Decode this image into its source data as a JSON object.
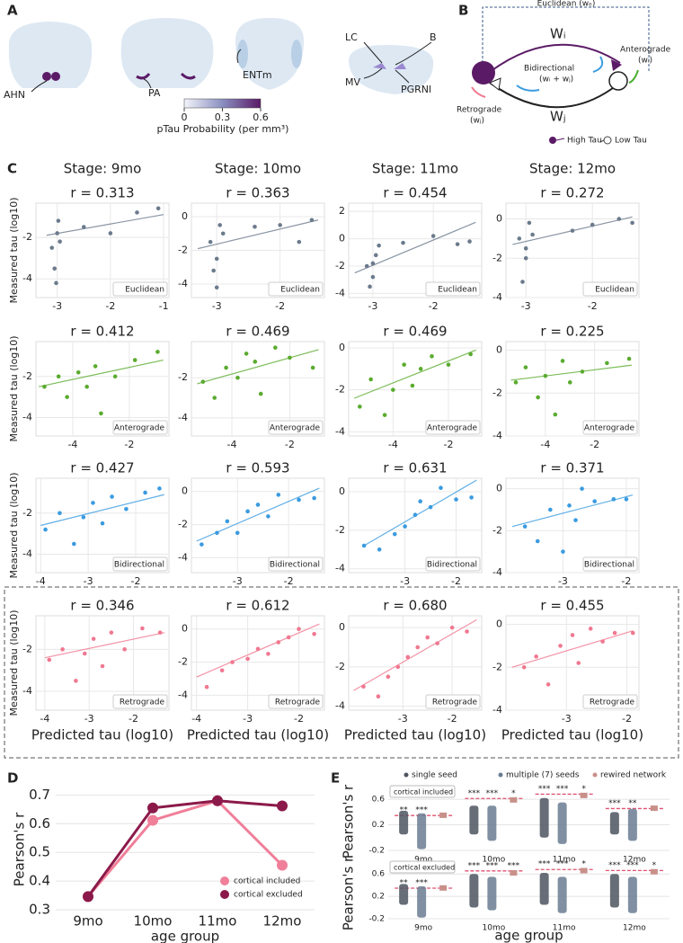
{
  "letters": [
    "A",
    "B",
    "C",
    "D",
    "E"
  ],
  "panel_a": {
    "labels": [
      "AHN",
      "PA",
      "ENTm",
      "LC",
      "B",
      "MV",
      "PGRNl"
    ],
    "colorbar": {
      "ticks": [
        0,
        0.3,
        0.6
      ],
      "label": "pTau Probability (per mm³)"
    }
  },
  "panel_b": {
    "euclidean": "Euclidean (wₑ)",
    "wi": "Wᵢ",
    "wj": "Wⱼ",
    "anterograde": "Anterograde",
    "antero_w": "(wᵢ)",
    "bidirectional": "Bidirectional",
    "bidir_w": "(wᵢ + wⱼ)",
    "retrograde": "Retrograde",
    "retro_w": "(wⱼ)",
    "high": "High Tau",
    "low": "Low Tau"
  },
  "chart_data": [
    {
      "type": "scatter",
      "stage": "Stage: 9mo",
      "title": "r = 0.313",
      "label": "Euclidean",
      "ylabel": "Measured tau (log10)",
      "color": "#6b7b8c",
      "x": [
        -3.1,
        -3.05,
        -3.0,
        -2.95,
        -3.02,
        -2.98,
        -2.5,
        -2.0,
        -1.5,
        -1.1
      ],
      "values": [
        -2.5,
        -3.5,
        -1.8,
        -2.2,
        -4.2,
        -1.2,
        -1.5,
        -1.8,
        -0.8,
        -0.6
      ],
      "fit_x": [
        -3.2,
        -1.0
      ],
      "fit_values": [
        -1.9,
        -0.9
      ],
      "xlim": [
        -3.4,
        -0.9
      ],
      "ylim": [
        -4.9,
        -0.35
      ],
      "xticks": [
        -3,
        -2,
        -1
      ],
      "yticks": [
        -4,
        -2
      ]
    },
    {
      "type": "scatter",
      "stage": "Stage: 10mo",
      "title": "r = 0.363",
      "label": "Euclidean",
      "color": "#6b7b8c",
      "x": [
        -3.1,
        -3.0,
        -2.95,
        -3.05,
        -2.9,
        -3.0,
        -2.4,
        -2.0,
        -1.7,
        -1.5
      ],
      "values": [
        -1.5,
        -2.5,
        -0.5,
        -3.2,
        -1.0,
        -4.2,
        -0.6,
        -0.5,
        -1.5,
        -0.2
      ],
      "fit_x": [
        -3.3,
        -1.4
      ],
      "fit_values": [
        -1.9,
        -0.2
      ],
      "xlim": [
        -3.4,
        -1.3
      ],
      "ylim": [
        -4.8,
        0.8
      ],
      "xticks": [
        -3,
        -2
      ],
      "yticks": [
        -4,
        -2,
        0
      ]
    },
    {
      "type": "scatter",
      "stage": "Stage: 11mo",
      "title": "r = 0.454",
      "label": "Euclidean",
      "color": "#6b7b8c",
      "x": [
        -3.1,
        -3.0,
        -2.95,
        -3.05,
        -2.9,
        -3.0,
        -2.5,
        -2.0,
        -1.6,
        -1.4
      ],
      "values": [
        -2.0,
        -2.8,
        -1.2,
        -3.5,
        -0.5,
        -1.8,
        -0.3,
        0.2,
        -0.4,
        -0.2
      ],
      "fit_x": [
        -3.3,
        -1.3
      ],
      "fit_values": [
        -2.5,
        1.2
      ],
      "xlim": [
        -3.4,
        -1.2
      ],
      "ylim": [
        -4.3,
        2.6
      ],
      "xticks": [
        -3,
        -2
      ],
      "yticks": [
        -4,
        -2,
        0,
        2
      ]
    },
    {
      "type": "scatter",
      "stage": "Stage: 12mo",
      "title": "r = 0.272",
      "label": "Euclidean",
      "color": "#6b7b8c",
      "x": [
        -3.1,
        -3.0,
        -2.95,
        -3.05,
        -2.9,
        -3.0,
        -2.3,
        -2.0,
        -1.6,
        -1.4
      ],
      "values": [
        -1.0,
        -2.0,
        -0.2,
        -3.2,
        -0.8,
        -1.5,
        -0.6,
        -0.3,
        0.0,
        -0.2
      ],
      "fit_x": [
        -3.2,
        -1.4
      ],
      "fit_values": [
        -1.3,
        0.1
      ],
      "xlim": [
        -3.3,
        -1.3
      ],
      "ylim": [
        -4,
        0.8
      ],
      "xticks": [
        -3,
        -2
      ],
      "yticks": [
        -4,
        -2,
        0
      ]
    },
    {
      "type": "scatter",
      "title": "r = 0.412",
      "label": "Anterograde",
      "ylabel": "Measured tau (log10)",
      "color": "#5aab2e",
      "x": [
        -5.0,
        -4.5,
        -4.2,
        -3.8,
        -3.5,
        -3.2,
        -3.0,
        -2.5,
        -1.8,
        -1.0
      ],
      "values": [
        -2.5,
        -2.0,
        -3.0,
        -1.8,
        -2.5,
        -1.5,
        -3.8,
        -2.0,
        -1.2,
        -0.8
      ],
      "fit_x": [
        -5.2,
        -0.8
      ],
      "fit_values": [
        -2.5,
        -1.2
      ],
      "xlim": [
        -5.3,
        -0.6
      ],
      "ylim": [
        -4.9,
        -0.3
      ],
      "xticks": [
        -4,
        -2
      ],
      "yticks": [
        -4,
        -2
      ]
    },
    {
      "type": "scatter",
      "title": "r = 0.469",
      "label": "Anterograde",
      "color": "#5aab2e",
      "x": [
        -5.0,
        -4.6,
        -4.2,
        -3.8,
        -3.5,
        -3.2,
        -3.0,
        -2.5,
        -2.0,
        -1.2
      ],
      "values": [
        -2.2,
        -3.0,
        -1.5,
        -2.0,
        -0.8,
        -1.2,
        -2.8,
        -0.5,
        -1.0,
        -1.5
      ],
      "fit_x": [
        -5.2,
        -1.0
      ],
      "fit_values": [
        -2.3,
        -0.6
      ],
      "xlim": [
        -5.4,
        -0.8
      ],
      "ylim": [
        -4.9,
        -0.2
      ],
      "xticks": [
        -4,
        -2
      ],
      "yticks": [
        -4,
        -2
      ]
    },
    {
      "type": "scatter",
      "title": "r = 0.469",
      "label": "Anterograde",
      "color": "#5aab2e",
      "x": [
        -5.2,
        -4.8,
        -4.3,
        -4.0,
        -3.6,
        -3.3,
        -3.0,
        -2.6,
        -2.0,
        -1.2
      ],
      "values": [
        -2.8,
        -1.5,
        -3.2,
        -2.0,
        -0.8,
        -1.8,
        -1.0,
        -0.4,
        -0.8,
        -0.3
      ],
      "fit_x": [
        -5.4,
        -1.0
      ],
      "fit_values": [
        -2.4,
        -0.1
      ],
      "xlim": [
        -5.6,
        -0.8
      ],
      "ylim": [
        -4.2,
        0.3
      ],
      "xticks": [
        -4,
        -2
      ],
      "yticks": [
        -4,
        -2,
        0
      ]
    },
    {
      "type": "scatter",
      "title": "r = 0.225",
      "label": "Anterograde",
      "color": "#5aab2e",
      "x": [
        -5.2,
        -4.8,
        -4.3,
        -4.0,
        -3.6,
        -3.3,
        -3.0,
        -2.5,
        -1.5,
        -0.6
      ],
      "values": [
        -1.5,
        -0.8,
        -2.2,
        -1.2,
        -3.0,
        -0.5,
        -1.5,
        -1.0,
        -0.6,
        -0.4
      ],
      "fit_x": [
        -5.4,
        -0.5
      ],
      "fit_values": [
        -1.4,
        -0.7
      ],
      "xlim": [
        -5.6,
        -0.2
      ],
      "ylim": [
        -4,
        0.4
      ],
      "xticks": [
        -4,
        -2
      ],
      "yticks": [
        -4,
        -2,
        0
      ]
    },
    {
      "type": "scatter",
      "title": "r = 0.427",
      "label": "Bidirectional",
      "ylabel": "Measured tau (log10)",
      "color": "#3a9be0",
      "x": [
        -3.9,
        -3.6,
        -3.3,
        -3.1,
        -2.9,
        -2.7,
        -2.5,
        -2.2,
        -1.8,
        -1.5
      ],
      "values": [
        -2.8,
        -2.0,
        -3.5,
        -2.2,
        -1.5,
        -2.5,
        -1.2,
        -1.8,
        -1.0,
        -0.8
      ],
      "fit_x": [
        -4.0,
        -1.4
      ],
      "fit_values": [
        -2.6,
        -1.1
      ],
      "xlim": [
        -4.1,
        -1.3
      ],
      "ylim": [
        -4.9,
        -0.3
      ],
      "xticks": [
        -4,
        -3,
        -2
      ],
      "yticks": [
        -4,
        -2
      ]
    },
    {
      "type": "scatter",
      "title": "r = 0.593",
      "label": "Bidirectional",
      "color": "#3a9be0",
      "x": [
        -3.7,
        -3.4,
        -3.2,
        -3.0,
        -2.8,
        -2.6,
        -2.4,
        -2.2,
        -1.8,
        -1.5
      ],
      "values": [
        -3.2,
        -2.5,
        -1.8,
        -2.5,
        -1.2,
        -0.8,
        -1.5,
        -0.2,
        -0.5,
        -0.4
      ],
      "fit_x": [
        -3.8,
        -1.4
      ],
      "fit_values": [
        -3.0,
        0.2
      ],
      "xlim": [
        -3.9,
        -1.3
      ],
      "ylim": [
        -4.9,
        0.8
      ],
      "xticks": [
        -3,
        -2
      ],
      "yticks": [
        -4,
        -2,
        0
      ]
    },
    {
      "type": "scatter",
      "title": "r = 0.631",
      "label": "Bidirectional",
      "color": "#3a9be0",
      "x": [
        -3.8,
        -3.5,
        -3.2,
        -3.0,
        -2.8,
        -2.7,
        -2.5,
        -2.3,
        -2.0,
        -1.7
      ],
      "values": [
        -2.8,
        -3.0,
        -2.2,
        -1.8,
        -1.2,
        -0.5,
        -0.8,
        0.2,
        -0.4,
        -0.3
      ],
      "fit_x": [
        -3.8,
        -1.6
      ],
      "fit_values": [
        -2.8,
        0.6
      ],
      "xlim": [
        -4.1,
        -1.5
      ],
      "ylim": [
        -4.2,
        0.7
      ],
      "xticks": [
        -3,
        -2
      ],
      "yticks": [
        -4,
        -2,
        0
      ]
    },
    {
      "type": "scatter",
      "title": "r = 0.371",
      "label": "Bidirectional",
      "color": "#3a9be0",
      "x": [
        -3.6,
        -3.4,
        -3.2,
        -3.0,
        -2.9,
        -2.8,
        -2.7,
        -2.5,
        -2.2,
        -2.0
      ],
      "values": [
        -1.8,
        -2.5,
        -1.0,
        -3.0,
        -0.8,
        -1.5,
        0.0,
        -0.6,
        -0.5,
        -0.5
      ],
      "fit_x": [
        -3.8,
        -1.9
      ],
      "fit_values": [
        -1.8,
        -0.3
      ],
      "xlim": [
        -3.9,
        -1.8
      ],
      "ylim": [
        -4,
        0.5
      ],
      "xticks": [
        -3,
        -2
      ],
      "yticks": [
        -4,
        -2,
        0
      ]
    },
    {
      "type": "scatter",
      "title": "r = 0.346",
      "label": "Retrograde",
      "ylabel": "Measured tau (log10)",
      "xlabel": "Predicted tau (log10)",
      "color": "#f07890",
      "x": [
        -3.9,
        -3.6,
        -3.3,
        -3.1,
        -2.9,
        -2.7,
        -2.5,
        -2.2,
        -1.8,
        -1.4
      ],
      "values": [
        -2.5,
        -2.0,
        -3.5,
        -2.2,
        -1.5,
        -2.8,
        -1.2,
        -2.0,
        -1.0,
        -1.2
      ],
      "fit_x": [
        -4.0,
        -1.3
      ],
      "fit_values": [
        -2.4,
        -1.2
      ],
      "xlim": [
        -4.2,
        -1.2
      ],
      "ylim": [
        -4.9,
        -0.4
      ],
      "xticks": [
        -4,
        -3,
        -2
      ],
      "yticks": [
        -4,
        -2
      ]
    },
    {
      "type": "scatter",
      "title": "r = 0.612",
      "label": "Retrograde",
      "xlabel": "Predicted tau (log10)",
      "color": "#f07890",
      "x": [
        -3.8,
        -3.5,
        -3.3,
        -3.0,
        -2.8,
        -2.6,
        -2.4,
        -2.2,
        -2.0,
        -1.7
      ],
      "values": [
        -3.5,
        -2.5,
        -2.0,
        -1.8,
        -1.2,
        -1.5,
        -0.8,
        -0.5,
        0.0,
        -0.3
      ],
      "fit_x": [
        -4.0,
        -1.6
      ],
      "fit_values": [
        -2.9,
        0.3
      ],
      "xlim": [
        -4.1,
        -1.5
      ],
      "ylim": [
        -4.9,
        0.8
      ],
      "xticks": [
        -4,
        -3,
        -2
      ],
      "yticks": [
        -4,
        -2,
        0
      ]
    },
    {
      "type": "scatter",
      "title": "r = 0.680",
      "label": "Retrograde",
      "xlabel": "Predicted tau (log10)",
      "color": "#f07890",
      "x": [
        -3.8,
        -3.5,
        -3.3,
        -3.1,
        -2.9,
        -2.7,
        -2.5,
        -2.3,
        -2.0,
        -1.7
      ],
      "values": [
        -3.0,
        -3.5,
        -2.5,
        -2.0,
        -1.5,
        -1.0,
        -0.5,
        -0.8,
        0.0,
        -0.2
      ],
      "fit_x": [
        -4.0,
        -1.5
      ],
      "fit_values": [
        -3.2,
        0.4
      ],
      "xlim": [
        -4.1,
        -1.4
      ],
      "ylim": [
        -4.2,
        0.6
      ],
      "xticks": [
        -3,
        -2
      ],
      "yticks": [
        -4,
        -2,
        0
      ]
    },
    {
      "type": "scatter",
      "title": "r = 0.455",
      "label": "Retrograde",
      "xlabel": "Predicted tau (log10)",
      "color": "#f07890",
      "x": [
        -3.7,
        -3.5,
        -3.3,
        -3.1,
        -2.9,
        -2.8,
        -2.6,
        -2.4,
        -2.2,
        -1.9
      ],
      "values": [
        -2.0,
        -1.5,
        -2.8,
        -1.0,
        -0.5,
        -1.8,
        -0.2,
        -0.8,
        -0.4,
        -0.4
      ],
      "fit_x": [
        -3.9,
        -1.9
      ],
      "fit_values": [
        -2.0,
        -0.3
      ],
      "xlim": [
        -4,
        -1.8
      ],
      "ylim": [
        -4,
        0.4
      ],
      "xticks": [
        -3,
        -2
      ],
      "yticks": [
        -4,
        -2,
        0
      ]
    },
    {
      "type": "line",
      "categories": [
        "9mo",
        "10mo",
        "11mo",
        "12mo"
      ],
      "xlabel": "age group",
      "ylabel": "Pearson's r",
      "ylim": [
        0.3,
        0.72
      ],
      "yticks": [
        0.3,
        0.4,
        0.5,
        0.6,
        0.7
      ],
      "grid": true,
      "legend": "lower-right",
      "series": [
        {
          "name": "cortical included",
          "color": "#f07f99",
          "values": [
            0.346,
            0.612,
            0.68,
            0.455
          ]
        },
        {
          "name": "cortical excluded",
          "color": "#8b1a4a",
          "values": [
            0.346,
            0.655,
            0.68,
            0.662
          ]
        }
      ]
    },
    {
      "type": "strip",
      "box_label": "cortical included",
      "ylabel": "Pearson's r",
      "categories": [
        "9mo",
        "10mo",
        "11mo",
        "12mo"
      ],
      "ylim": [
        -0.2,
        0.7
      ],
      "yticks": [
        -0.2,
        0.2,
        0.6
      ],
      "reference": [
        0.346,
        0.612,
        0.68,
        0.455
      ],
      "stars": [
        [
          "**",
          "***",
          null
        ],
        [
          "***",
          "***",
          "*"
        ],
        [
          "***",
          "***",
          "*"
        ],
        [
          "***",
          "**",
          null
        ]
      ],
      "series": [
        {
          "name": "single seed",
          "color": "#4d5560",
          "low": [
            0.05,
            0.05,
            0.0,
            0.05
          ],
          "high": [
            0.42,
            0.5,
            0.62,
            0.4
          ]
        },
        {
          "name": "multiple (7) seeds",
          "color": "#6a7d92",
          "low": [
            -0.18,
            -0.05,
            -0.1,
            -0.05
          ],
          "high": [
            0.38,
            0.5,
            0.55,
            0.45
          ]
        },
        {
          "name": "rewired network",
          "color": "#c9908a",
          "values": [
            0.35,
            0.59,
            0.66,
            0.46
          ]
        }
      ]
    },
    {
      "type": "strip",
      "box_label": "cortical excluded",
      "ylabel": "Pearson's r",
      "xlabel": "age group",
      "categories": [
        "9mo",
        "10mo",
        "11mo",
        "12mo"
      ],
      "ylim": [
        -0.2,
        0.7
      ],
      "yticks": [
        -0.2,
        0.2,
        0.6
      ],
      "reference": [
        0.346,
        0.655,
        0.68,
        0.662
      ],
      "stars": [
        [
          "**",
          "***",
          null
        ],
        [
          "***",
          "***",
          "***"
        ],
        [
          "***",
          "***",
          "*"
        ],
        [
          "***",
          "***",
          "*"
        ]
      ],
      "series": [
        {
          "color": "#4d5560",
          "low": [
            0.05,
            0.0,
            0.05,
            0.0
          ],
          "high": [
            0.42,
            0.6,
            0.62,
            0.6
          ]
        },
        {
          "color": "#6a7d92",
          "low": [
            -0.18,
            -0.05,
            -0.1,
            -0.1
          ],
          "high": [
            0.38,
            0.55,
            0.55,
            0.55
          ]
        },
        {
          "color": "#c9908a",
          "values": [
            0.35,
            0.62,
            0.66,
            0.64
          ]
        }
      ]
    }
  ]
}
